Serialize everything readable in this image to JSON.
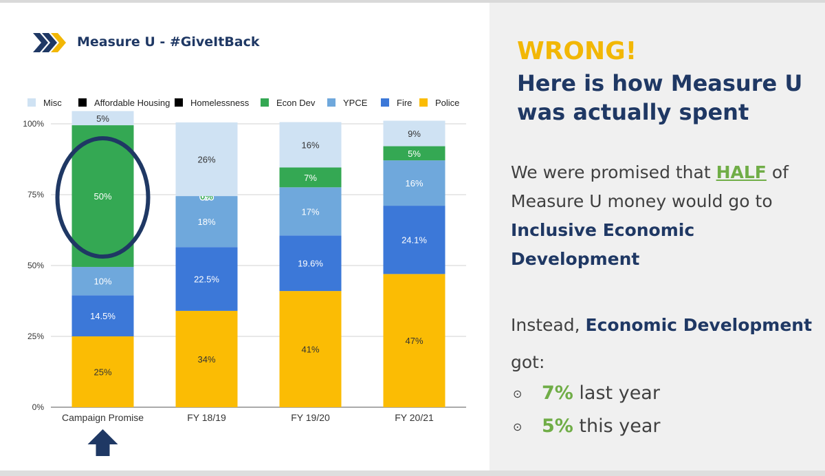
{
  "slide_title": "Measure U - #GiveItBack",
  "right": {
    "exclaim": "WRONG!",
    "headline_line1": "Here is how Measure U",
    "headline_line2": "was actually spent",
    "p1_pre": "We were promised that ",
    "p1_half": "HALF",
    "p1_post": " of",
    "p1_line2": "Measure U money would go to",
    "p1_line3": "Inclusive Economic",
    "p1_line4": "Development",
    "p2_pre": "Instead, ",
    "p2_bold": "Economic Development",
    "p2_line2": "got:",
    "bullets": [
      {
        "pct": "7%",
        "text": " last year"
      },
      {
        "pct": "5%",
        "text": " this year"
      }
    ]
  },
  "icons": {
    "logo": "double-chevron-right-icon",
    "bullet": "circle-dot-icon",
    "pointer": "up-arrow-icon",
    "highlight": "ellipse-highlight"
  },
  "chart_data": {
    "type": "bar",
    "stacked": true,
    "categories": [
      "Campaign Promise",
      "FY 18/19",
      "FY 19/20",
      "FY 20/21"
    ],
    "yticks": [
      "0%",
      "25%",
      "50%",
      "75%",
      "100%"
    ],
    "ylim": [
      0,
      100
    ],
    "legend_position": "top",
    "grid": true,
    "series": [
      {
        "name": "Police",
        "color": "#fbbc04",
        "values": [
          25,
          34,
          41,
          47
        ],
        "labels": [
          "25%",
          "34%",
          "41%",
          "47%"
        ]
      },
      {
        "name": "Fire",
        "color": "#3c78d8",
        "values": [
          14.5,
          22.5,
          19.6,
          24.1
        ],
        "labels": [
          "14.5%",
          "22.5%",
          "19.6%",
          "24.1%"
        ]
      },
      {
        "name": "YPCE",
        "color": "#6fa8dc",
        "values": [
          10,
          18,
          17,
          16
        ],
        "labels": [
          "10%",
          "18%",
          "17%",
          "16%"
        ]
      },
      {
        "name": "Econ Dev",
        "color": "#34a853",
        "values": [
          50,
          0,
          7,
          5
        ],
        "labels": [
          "50%",
          "0%",
          "7%",
          "5%"
        ]
      },
      {
        "name": "Homelessness",
        "color": "#000000",
        "values": [
          0,
          0,
          0,
          0
        ],
        "labels": [
          "",
          "",
          "",
          ""
        ]
      },
      {
        "name": "Affordable Housing",
        "color": "#000000",
        "values": [
          0,
          0,
          0,
          0
        ],
        "labels": [
          "",
          "",
          "",
          ""
        ]
      },
      {
        "name": "Misc",
        "color": "#cfe2f3",
        "values": [
          5,
          26,
          16,
          9
        ],
        "labels": [
          "5%",
          "26%",
          "16%",
          "9%"
        ]
      }
    ],
    "legend_order": [
      "Misc",
      "Affordable Housing",
      "Homelessness",
      "Econ Dev",
      "YPCE",
      "Fire",
      "Police"
    ],
    "accent_colors": {
      "navy": "#1f3864",
      "green": "#70ad47",
      "gold": "#f2b705"
    }
  }
}
